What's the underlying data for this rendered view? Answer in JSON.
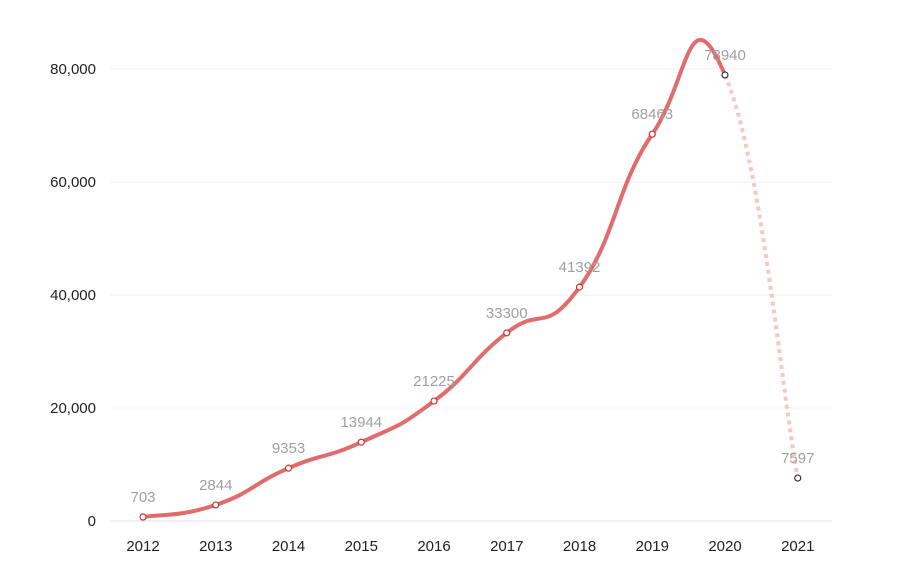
{
  "chart_data": {
    "type": "line",
    "title": "",
    "xlabel": "",
    "ylabel": "",
    "categories": [
      "2012",
      "2013",
      "2014",
      "2015",
      "2016",
      "2017",
      "2018",
      "2019",
      "2020",
      "2021"
    ],
    "series": [
      {
        "values": [
          703,
          2844,
          9353,
          13944,
          21225,
          33300,
          41392,
          68463,
          78940,
          7597
        ],
        "color": "#e06c6c",
        "projected_segment_color": "#f6c8c3",
        "projected_segment_style": "dotted",
        "projected_from_category": "2020"
      }
    ],
    "data_labels": [
      "703",
      "2844",
      "9353",
      "13944",
      "21225",
      "33300",
      "41392",
      "68463",
      "78940",
      "7597"
    ],
    "ylim": [
      0,
      80000
    ],
    "yticks": [
      0,
      20000,
      40000,
      60000,
      80000
    ],
    "ytick_labels": [
      "0",
      "20,000",
      "40,000",
      "60,000",
      "80,000"
    ],
    "grid": true,
    "legend": "none"
  }
}
